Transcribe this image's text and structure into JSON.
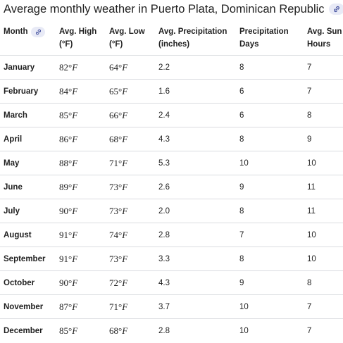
{
  "title": "Average monthly weather in Puerto Plata, Dominican Republic",
  "icons": {
    "title_link": "link-icon",
    "header_link": "link-icon"
  },
  "colors": {
    "chip_bg": "#e8eaf6",
    "chip_icon": "#3c4a9a",
    "divider": "#dadce0"
  },
  "columns": [
    "Month",
    "Avg. High (°F)",
    "Avg. Low (°F)",
    "Avg. Precipitation (inches)",
    "Precipitation Days",
    "Avg. Sun Hours"
  ],
  "rows": [
    {
      "month": "January",
      "high": "82°",
      "low": "64°",
      "precip": "2.2",
      "days": "8",
      "sun": "7"
    },
    {
      "month": "February",
      "high": "84°",
      "low": "65°",
      "precip": "1.6",
      "days": "6",
      "sun": "7"
    },
    {
      "month": "March",
      "high": "85°",
      "low": "66°",
      "precip": "2.4",
      "days": "6",
      "sun": "8"
    },
    {
      "month": "April",
      "high": "86°",
      "low": "68°",
      "precip": "4.3",
      "days": "8",
      "sun": "9"
    },
    {
      "month": "May",
      "high": "88°",
      "low": "71°",
      "precip": "5.3",
      "days": "10",
      "sun": "10"
    },
    {
      "month": "June",
      "high": "89°",
      "low": "73°",
      "precip": "2.6",
      "days": "9",
      "sun": "11"
    },
    {
      "month": "July",
      "high": "90°",
      "low": "73°",
      "precip": "2.0",
      "days": "8",
      "sun": "11"
    },
    {
      "month": "August",
      "high": "91°",
      "low": "74°",
      "precip": "2.8",
      "days": "7",
      "sun": "10"
    },
    {
      "month": "September",
      "high": "91°",
      "low": "73°",
      "precip": "3.3",
      "days": "8",
      "sun": "10"
    },
    {
      "month": "October",
      "high": "90°",
      "low": "72°",
      "precip": "4.3",
      "days": "9",
      "sun": "8"
    },
    {
      "month": "November",
      "high": "87°",
      "low": "71°",
      "precip": "3.7",
      "days": "10",
      "sun": "7"
    },
    {
      "month": "December",
      "high": "85°",
      "low": "68°",
      "precip": "2.8",
      "days": "10",
      "sun": "7"
    }
  ],
  "temp_unit": "F"
}
